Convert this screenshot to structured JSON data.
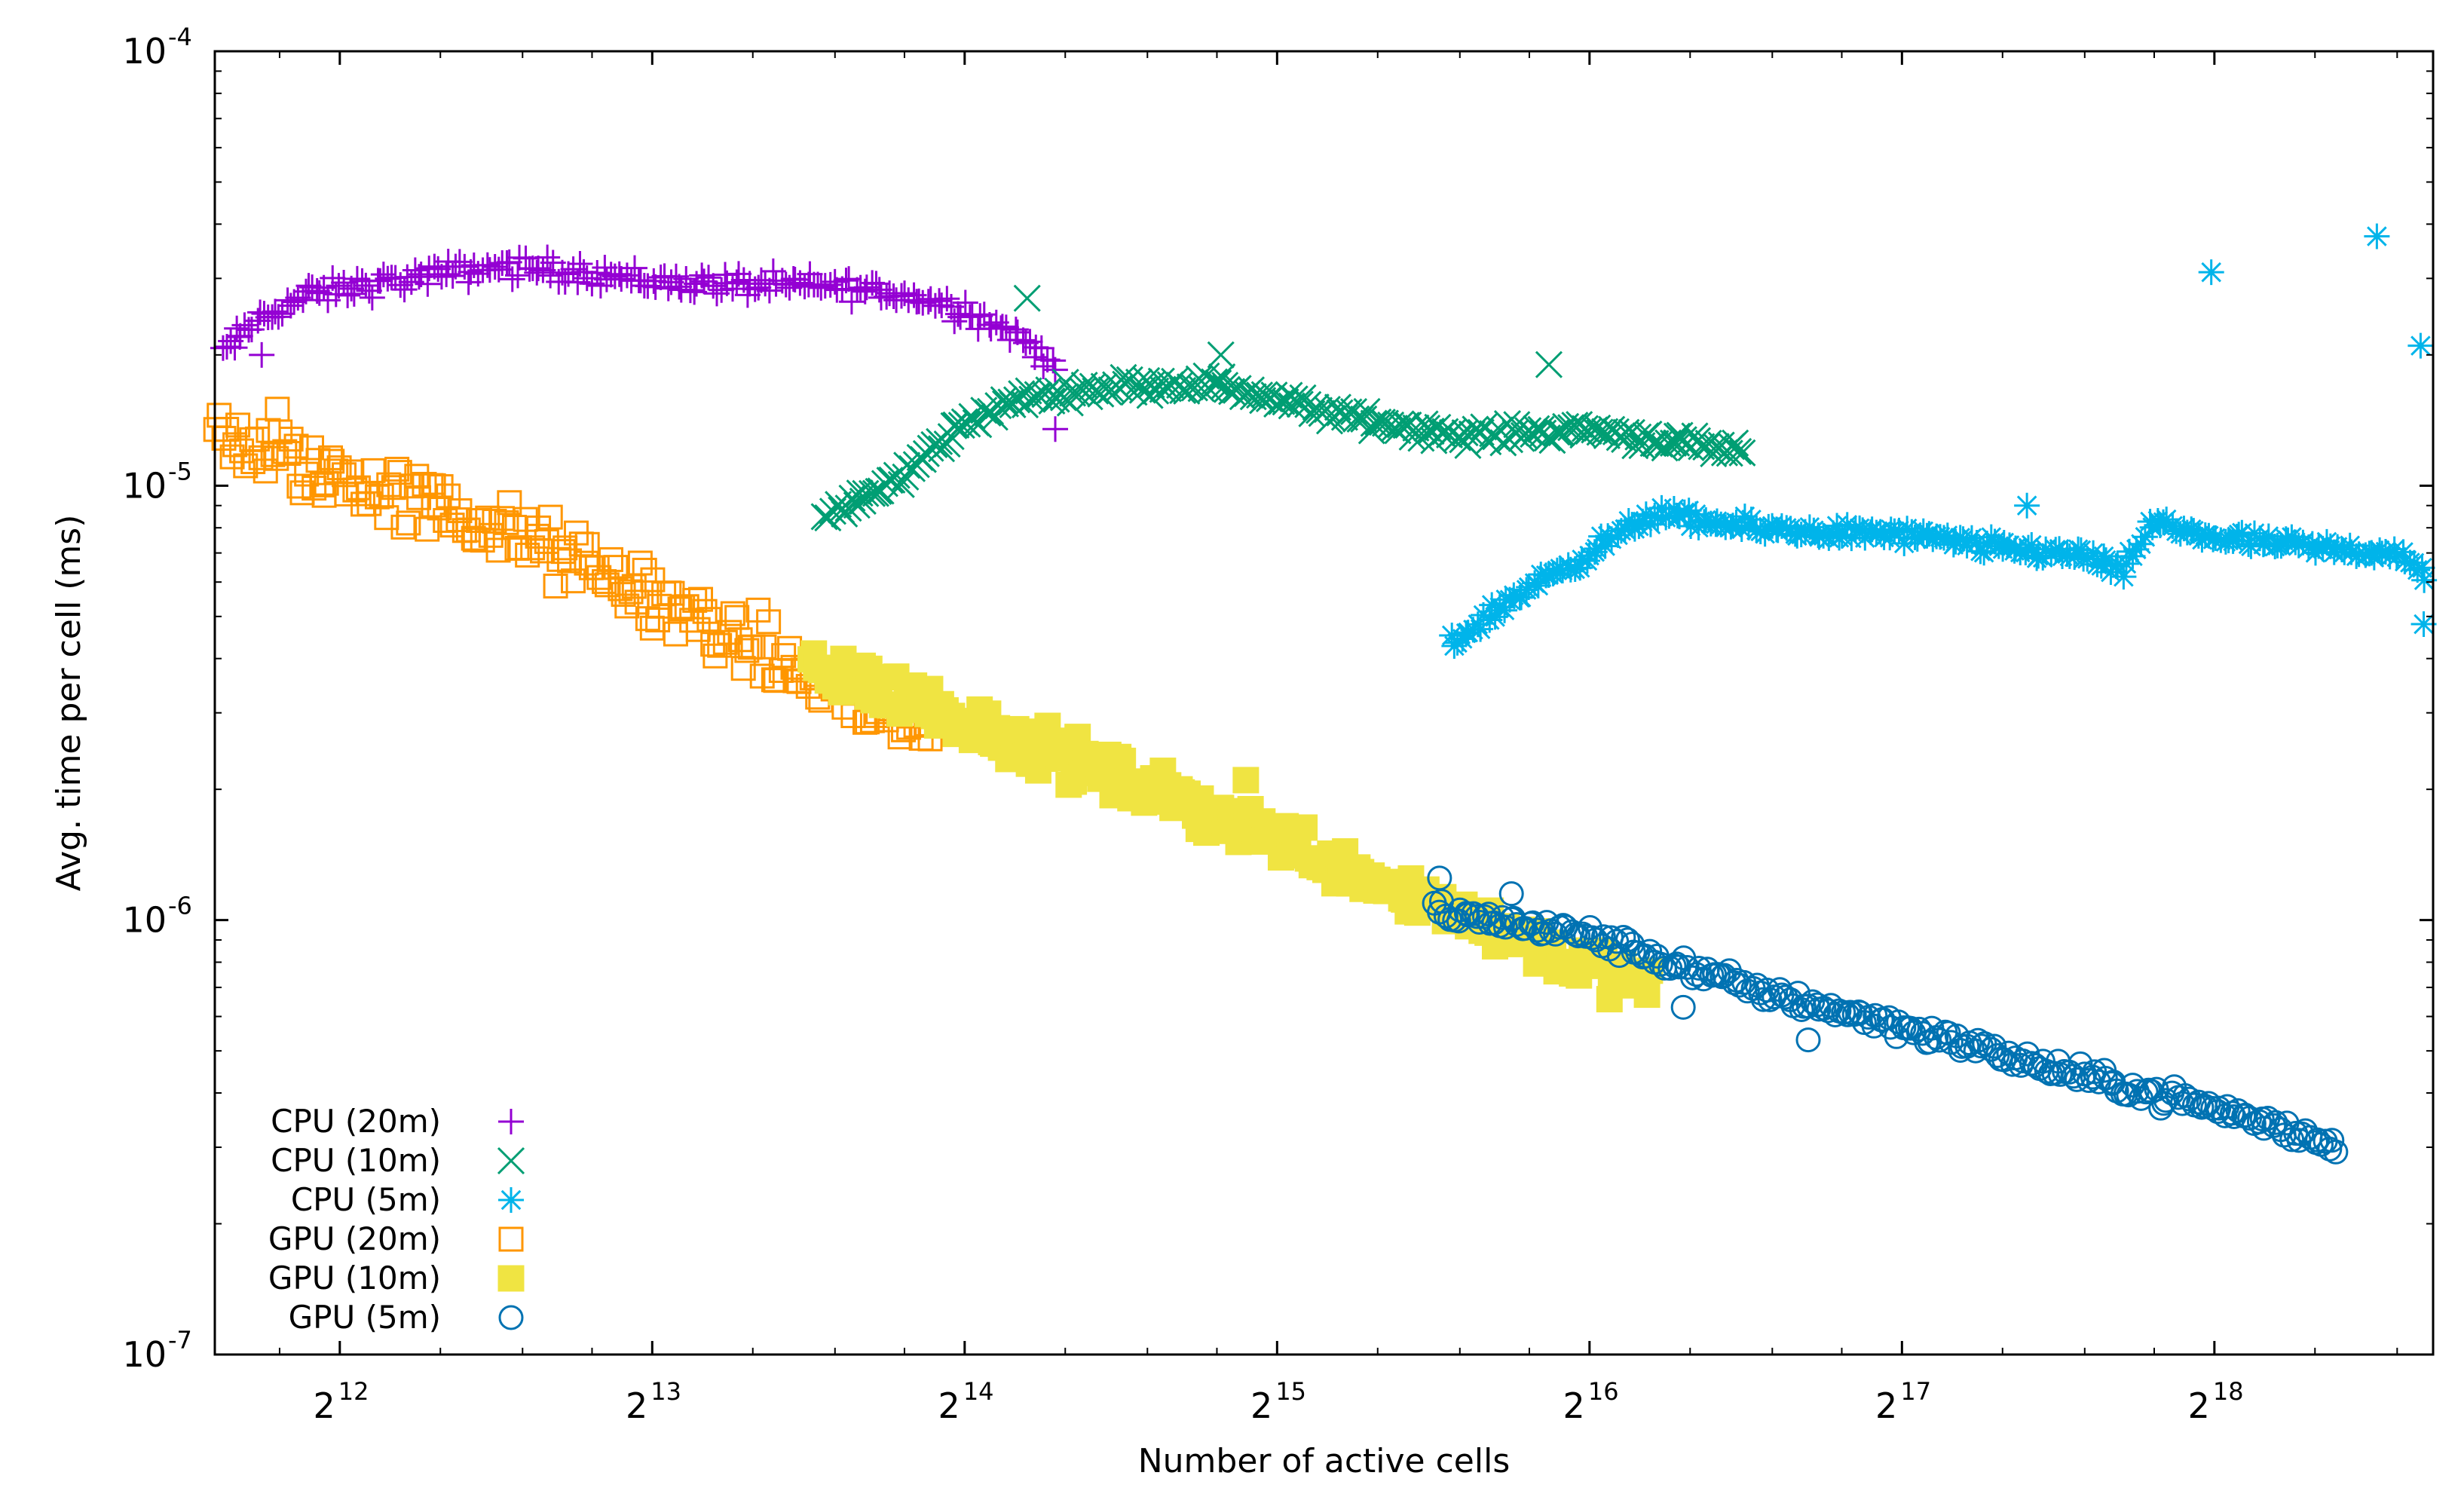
{
  "chart_data": {
    "type": "scatter",
    "title": "",
    "xlabel": "Number of active cells",
    "ylabel": "Avg. time per cell (ms)",
    "xscale": "log2",
    "yscale": "log10",
    "xlim_exp2": [
      11.6,
      18.7
    ],
    "ylim": [
      1e-07,
      0.0001
    ],
    "x_ticks": [
      {
        "base": "2",
        "exp": "12",
        "value_exp2": 12
      },
      {
        "base": "2",
        "exp": "13",
        "value_exp2": 13
      },
      {
        "base": "2",
        "exp": "14",
        "value_exp2": 14
      },
      {
        "base": "2",
        "exp": "15",
        "value_exp2": 15
      },
      {
        "base": "2",
        "exp": "16",
        "value_exp2": 16
      },
      {
        "base": "2",
        "exp": "17",
        "value_exp2": 17
      },
      {
        "base": "2",
        "exp": "18",
        "value_exp2": 18
      }
    ],
    "y_ticks": [
      {
        "base": "10",
        "exp": "-4",
        "value": 0.0001
      },
      {
        "base": "10",
        "exp": "-5",
        "value": 1e-05
      },
      {
        "base": "10",
        "exp": "-6",
        "value": 1e-06
      },
      {
        "base": "10",
        "exp": "-7",
        "value": 1e-07
      }
    ],
    "grid": false,
    "legend_position": "bottom-left",
    "series": [
      {
        "name": "CPU (20m)",
        "marker": "plus",
        "color": "#9400d3",
        "filled": false,
        "trend_x_exp2": [
          11.62,
          11.75,
          11.9,
          12.1,
          12.3,
          12.5,
          12.8,
          13.0,
          13.3,
          13.6,
          13.8,
          14.0,
          14.15,
          14.3
        ],
        "trend_y": [
          2e-05,
          2.45e-05,
          2.75e-05,
          2.9e-05,
          3.05e-05,
          3.2e-05,
          3.1e-05,
          2.95e-05,
          2.9e-05,
          2.88e-05,
          2.75e-05,
          2.55e-05,
          2.25e-05,
          1.9e-05
        ],
        "jitter": 0.04,
        "outliers": [
          [
            11.68,
            2.2e-05
          ],
          [
            11.75,
            2e-05
          ],
          [
            14.29,
            1.35e-05
          ]
        ]
      },
      {
        "name": "CPU (10m)",
        "marker": "cross",
        "color": "#009e73",
        "filled": false,
        "trend_x_exp2": [
          13.55,
          13.8,
          14.0,
          14.2,
          14.5,
          14.8,
          15.2,
          15.6,
          16.0,
          16.5
        ],
        "trend_y": [
          8.3e-06,
          1.05e-05,
          1.4e-05,
          1.6e-05,
          1.7e-05,
          1.72e-05,
          1.45e-05,
          1.3e-05,
          1.35e-05,
          1.18e-05
        ],
        "jitter": 0.03,
        "outliers": [
          [
            14.2,
            2.7e-05
          ],
          [
            14.82,
            2e-05
          ],
          [
            15.87,
            1.9e-05
          ],
          [
            16.28,
            1.3e-05
          ]
        ]
      },
      {
        "name": "CPU (5m)",
        "marker": "star",
        "color": "#00b4ea",
        "filled": false,
        "trend_x_exp2": [
          15.55,
          15.8,
          16.0,
          16.2,
          16.5,
          16.8,
          17.0,
          17.3,
          17.6,
          17.7,
          17.8,
          18.0,
          18.3,
          18.6,
          18.68
        ],
        "trend_y": [
          4.3e-06,
          5.8e-06,
          7e-06,
          8.6e-06,
          8e-06,
          7.8e-06,
          7.7e-06,
          7.2e-06,
          6.9e-06,
          6.2e-06,
          8.2e-06,
          7.6e-06,
          7.2e-06,
          7e-06,
          6e-06
        ],
        "jitter": 0.03,
        "outliers": [
          [
            17.99,
            3.1e-05
          ],
          [
            18.52,
            3.75e-05
          ],
          [
            18.66,
            2.1e-05
          ],
          [
            18.67,
            4.8e-06
          ],
          [
            17.4,
            9e-06
          ]
        ]
      },
      {
        "name": "GPU (20m)",
        "marker": "square-open",
        "color": "#ff9600",
        "filled": false,
        "trend_x_exp2": [
          11.6,
          12.0,
          12.5,
          13.0,
          13.5,
          13.9
        ],
        "trend_y": [
          1.3e-05,
          1.05e-05,
          8e-06,
          5.6e-06,
          3.6e-06,
          2.6e-06
        ],
        "jitter": 0.11,
        "outliers": [
          [
            11.8,
            1.5e-05
          ],
          [
            11.95,
            9.5e-06
          ],
          [
            12.3,
            1e-05
          ],
          [
            13.0,
            4.7e-06
          ]
        ]
      },
      {
        "name": "GPU (10m)",
        "marker": "square-filled",
        "color": "#f0e442",
        "filled": true,
        "trend_x_exp2": [
          13.5,
          14.0,
          14.5,
          15.0,
          15.5,
          16.0,
          16.2
        ],
        "trend_y": [
          3.9e-06,
          2.9e-06,
          2.1e-06,
          1.55e-06,
          1.1e-06,
          7.8e-07,
          6.9e-07
        ],
        "jitter": 0.08,
        "outliers": [
          [
            14.2,
            2.4e-06
          ],
          [
            14.9,
            2.1e-06
          ]
        ]
      },
      {
        "name": "GPU (5m)",
        "marker": "circle-open",
        "color": "#0072b2",
        "filled": false,
        "trend_x_exp2": [
          15.5,
          16.0,
          16.5,
          17.0,
          17.5,
          18.0,
          18.4
        ],
        "trend_y": [
          1.05e-06,
          9.2e-07,
          7e-07,
          5.7e-07,
          4.5e-07,
          3.7e-07,
          3e-07
        ],
        "jitter": 0.035,
        "outliers": [
          [
            15.52,
            1.25e-06
          ],
          [
            15.75,
            1.15e-06
          ],
          [
            16.3,
            6.3e-07
          ],
          [
            16.7,
            5.3e-07
          ]
        ]
      }
    ]
  }
}
